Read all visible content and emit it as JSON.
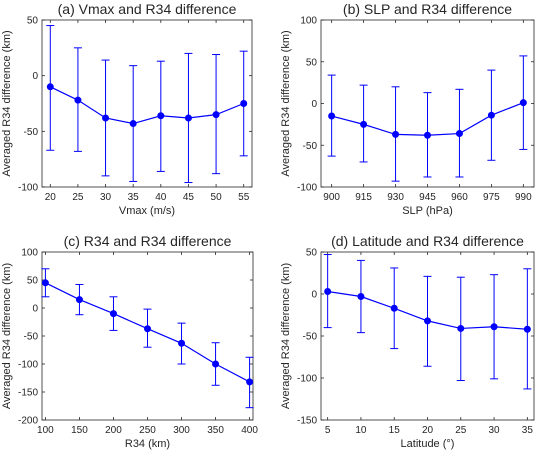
{
  "figure": {
    "panels": [
      {
        "id": "a",
        "title": "(a) Vmax and R34 difference",
        "xlabel": "Vmax (m/s)",
        "ylabel": "Averaged R34 difference (km)"
      },
      {
        "id": "b",
        "title": "(b) SLP and R34 difference",
        "xlabel": "SLP (hPa)",
        "ylabel": "Averaged R34 difference (km)"
      },
      {
        "id": "c",
        "title": "(c) R34 and R34 difference",
        "xlabel": "R34 (km)",
        "ylabel": "Averaged R34 difference (km)"
      },
      {
        "id": "d",
        "title": "(d) Latitude and R34 difference",
        "xlabel": "Latitude (°)",
        "ylabel": "Averaged R34 difference (km)"
      }
    ],
    "line_color": "#0000ff"
  },
  "chart_data": [
    {
      "type": "line",
      "title": "(a) Vmax and R34 difference",
      "xlabel": "Vmax (m/s)",
      "ylabel": "Averaged R34 difference (km)",
      "x": [
        20,
        25,
        30,
        35,
        40,
        45,
        50,
        55
      ],
      "y": [
        -10,
        -22,
        -38,
        -43,
        -36,
        -38,
        -35,
        -25
      ],
      "err_low": [
        -67,
        -68,
        -90,
        -95,
        -86,
        -96,
        -88,
        -72
      ],
      "err_high": [
        45,
        25,
        14,
        9,
        13,
        20,
        19,
        22
      ],
      "xlim": [
        18.5,
        56.5
      ],
      "ylim": [
        -100,
        50
      ],
      "xticks": [
        20,
        25,
        30,
        35,
        40,
        45,
        50,
        55
      ],
      "yticks": [
        -100,
        -50,
        0,
        50
      ],
      "grid": false
    },
    {
      "type": "line",
      "title": "(b) SLP and R34 difference",
      "xlabel": "SLP (hPa)",
      "ylabel": "Averaged R34 difference (km)",
      "x": [
        900,
        915,
        930,
        945,
        960,
        975,
        990
      ],
      "y": [
        -15,
        -25,
        -37,
        -38,
        -36,
        -14,
        1
      ],
      "err_low": [
        -63,
        -70,
        -93,
        -88,
        -88,
        -68,
        -55
      ],
      "err_high": [
        34,
        22,
        20,
        13,
        17,
        40,
        57
      ],
      "xlim": [
        895,
        995
      ],
      "ylim": [
        -100,
        100
      ],
      "xticks": [
        900,
        915,
        930,
        945,
        960,
        975,
        990
      ],
      "yticks": [
        -100,
        -50,
        0,
        50,
        100
      ],
      "grid": false
    },
    {
      "type": "line",
      "title": "(c) R34 and R34 difference",
      "xlabel": "R34 (km)",
      "ylabel": "Averaged R34 difference (km)",
      "x": [
        100,
        150,
        200,
        250,
        300,
        350,
        400
      ],
      "y": [
        45,
        15,
        -10,
        -37,
        -63,
        -100,
        -132
      ],
      "err_low": [
        20,
        -12,
        -40,
        -70,
        -100,
        -138,
        -178
      ],
      "err_high": [
        70,
        42,
        20,
        -2,
        -27,
        -62,
        -88
      ],
      "xlim": [
        95,
        405
      ],
      "ylim": [
        -200,
        100
      ],
      "xticks": [
        100,
        150,
        200,
        250,
        300,
        350,
        400
      ],
      "yticks": [
        -200,
        -150,
        -100,
        -50,
        0,
        50,
        100
      ],
      "grid": false
    },
    {
      "type": "line",
      "title": "(d) Latitude and R34 difference",
      "xlabel": "Latitude (°)",
      "ylabel": "Averaged R34 difference (km)",
      "x": [
        5,
        10,
        15,
        20,
        25,
        30,
        35
      ],
      "y": [
        3,
        -3,
        -17,
        -32,
        -41,
        -39,
        -42
      ],
      "err_low": [
        -40,
        -46,
        -65,
        -86,
        -103,
        -101,
        -113
      ],
      "err_high": [
        47,
        40,
        31,
        21,
        20,
        23,
        30
      ],
      "xlim": [
        4,
        36
      ],
      "ylim": [
        -150,
        50
      ],
      "xticks": [
        5,
        10,
        15,
        20,
        25,
        30,
        35
      ],
      "yticks": [
        -150,
        -100,
        -50,
        0,
        50
      ],
      "grid": false
    }
  ]
}
